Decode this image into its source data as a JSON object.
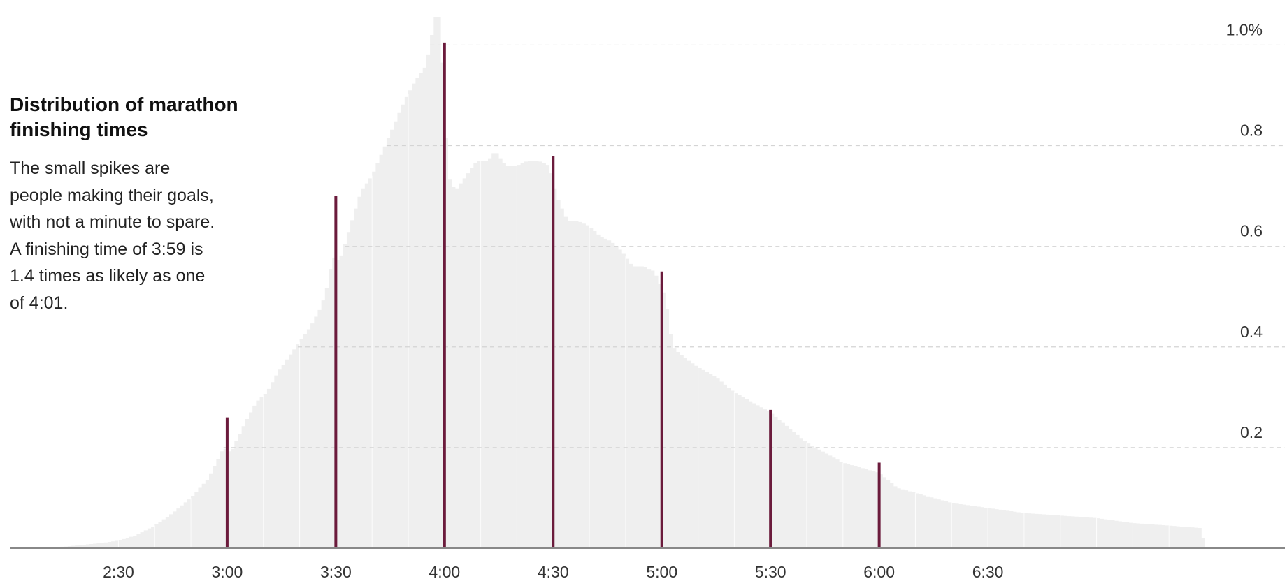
{
  "colors": {
    "histogram": "#efefef",
    "highlight": "#6b1b3c",
    "gridline": "#d4d4d4",
    "baseline": "#888888"
  },
  "chart_data": {
    "type": "bar",
    "title": "Distribution of marathon finishing times",
    "subtitle": "The small spikes are people making their goals, with not a minute to spare. A finishing time of 3:59 is 1.4 times as likely as one of 4:01.",
    "xlabel": "",
    "ylabel": "",
    "x_unit": "minutes",
    "xlim": [
      120,
      472
    ],
    "ylim": [
      0,
      1.07
    ],
    "grid": true,
    "y_ticks": [
      {
        "value": 0.2,
        "label": "0.2"
      },
      {
        "value": 0.4,
        "label": "0.4"
      },
      {
        "value": 0.6,
        "label": "0.6"
      },
      {
        "value": 0.8,
        "label": "0.8"
      },
      {
        "value": 1.0,
        "label": "1.0%"
      }
    ],
    "x_ticks": [
      {
        "value": 150,
        "label": "2:30"
      },
      {
        "value": 180,
        "label": "3:00"
      },
      {
        "value": 210,
        "label": "3:30"
      },
      {
        "value": 240,
        "label": "4:00"
      },
      {
        "value": 270,
        "label": "4:30"
      },
      {
        "value": 300,
        "label": "5:00"
      },
      {
        "value": 330,
        "label": "5:30"
      },
      {
        "value": 360,
        "label": "6:00"
      },
      {
        "value": 390,
        "label": "6:30"
      }
    ],
    "distribution": [
      [
        120,
        0.0
      ],
      [
        135,
        0.003
      ],
      [
        145,
        0.01
      ],
      [
        150,
        0.015
      ],
      [
        155,
        0.026
      ],
      [
        160,
        0.045
      ],
      [
        165,
        0.07
      ],
      [
        170,
        0.1
      ],
      [
        175,
        0.14
      ],
      [
        177,
        0.17
      ],
      [
        179,
        0.2
      ],
      [
        181,
        0.19
      ],
      [
        183,
        0.22
      ],
      [
        185,
        0.25
      ],
      [
        188,
        0.29
      ],
      [
        191,
        0.31
      ],
      [
        194,
        0.35
      ],
      [
        197,
        0.38
      ],
      [
        200,
        0.41
      ],
      [
        203,
        0.44
      ],
      [
        206,
        0.48
      ],
      [
        208,
        0.53
      ],
      [
        209,
        0.58
      ],
      [
        211,
        0.57
      ],
      [
        214,
        0.64
      ],
      [
        217,
        0.71
      ],
      [
        220,
        0.74
      ],
      [
        223,
        0.79
      ],
      [
        226,
        0.84
      ],
      [
        229,
        0.89
      ],
      [
        232,
        0.93
      ],
      [
        235,
        0.96
      ],
      [
        237,
        1.04
      ],
      [
        238,
        1.07
      ],
      [
        239,
        1.04
      ],
      [
        241,
        0.74
      ],
      [
        243,
        0.71
      ],
      [
        246,
        0.74
      ],
      [
        249,
        0.77
      ],
      [
        252,
        0.77
      ],
      [
        254,
        0.79
      ],
      [
        257,
        0.76
      ],
      [
        260,
        0.76
      ],
      [
        263,
        0.77
      ],
      [
        266,
        0.77
      ],
      [
        269,
        0.76
      ],
      [
        271,
        0.7
      ],
      [
        274,
        0.65
      ],
      [
        277,
        0.65
      ],
      [
        280,
        0.64
      ],
      [
        283,
        0.62
      ],
      [
        286,
        0.61
      ],
      [
        289,
        0.59
      ],
      [
        292,
        0.56
      ],
      [
        295,
        0.56
      ],
      [
        298,
        0.55
      ],
      [
        301,
        0.5
      ],
      [
        303,
        0.4
      ],
      [
        306,
        0.38
      ],
      [
        310,
        0.36
      ],
      [
        315,
        0.34
      ],
      [
        320,
        0.31
      ],
      [
        325,
        0.29
      ],
      [
        330,
        0.27
      ],
      [
        335,
        0.24
      ],
      [
        340,
        0.21
      ],
      [
        345,
        0.19
      ],
      [
        350,
        0.17
      ],
      [
        355,
        0.16
      ],
      [
        360,
        0.15
      ],
      [
        365,
        0.12
      ],
      [
        370,
        0.11
      ],
      [
        380,
        0.09
      ],
      [
        390,
        0.08
      ],
      [
        400,
        0.07
      ],
      [
        410,
        0.065
      ],
      [
        420,
        0.06
      ],
      [
        430,
        0.05
      ],
      [
        440,
        0.045
      ],
      [
        449,
        0.04
      ],
      [
        450,
        0.0
      ]
    ],
    "series": [
      {
        "type": "spike",
        "x": [
          180,
          210,
          240,
          270,
          300,
          330,
          360
        ],
        "values": [
          0.26,
          0.7,
          1.005,
          0.78,
          0.55,
          0.275,
          0.17
        ]
      }
    ]
  }
}
